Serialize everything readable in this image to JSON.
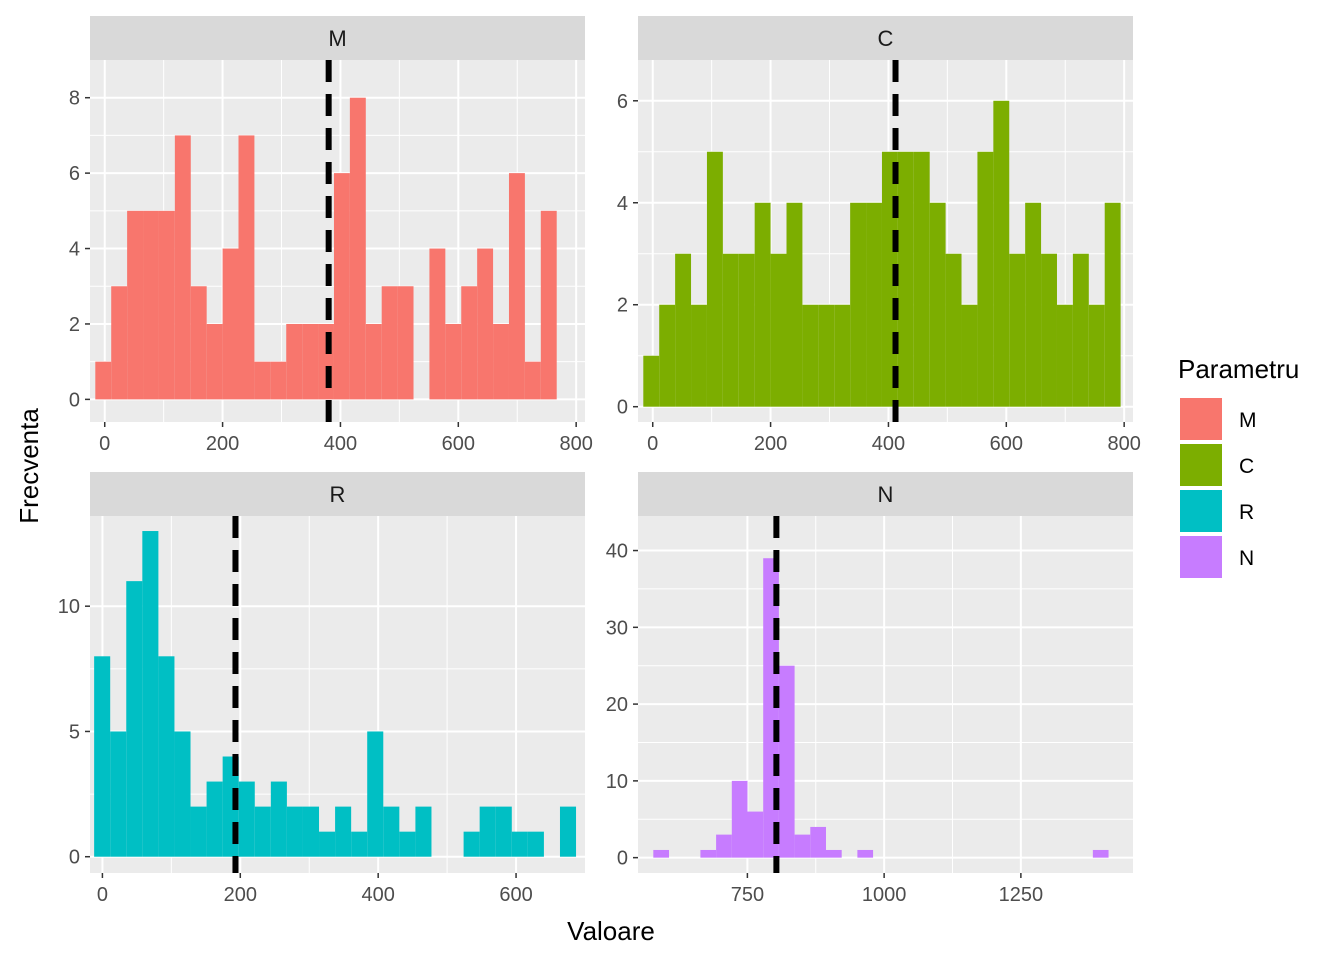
{
  "chart_data": {
    "type": "histogram-facets",
    "xlabel": "Valoare",
    "ylabel": "Frecventa",
    "legend": {
      "title": "Parametru",
      "position": "right",
      "items": [
        {
          "label": "M",
          "color": "#F8766D"
        },
        {
          "label": "C",
          "color": "#7CAE00"
        },
        {
          "label": "R",
          "color": "#00BFC4"
        },
        {
          "label": "N",
          "color": "#C77CFF"
        }
      ]
    },
    "panels": [
      {
        "name": "M",
        "color": "#F8766D",
        "xlim": [
          -25,
          815
        ],
        "ylim": [
          -0.6,
          9.0
        ],
        "xticks": [
          0,
          200,
          400,
          600,
          800
        ],
        "xtick_labels": [
          "0",
          "200",
          "400",
          "600",
          "800"
        ],
        "yticks": [
          0,
          2,
          4,
          6,
          8
        ],
        "ytick_labels": [
          "0",
          "2",
          "4",
          "6",
          "8"
        ],
        "mean": 380,
        "bin_start": -16,
        "bin_width": 27,
        "counts": [
          1,
          3,
          5,
          5,
          5,
          7,
          3,
          2,
          4,
          7,
          1,
          1,
          2,
          2,
          2,
          6,
          8,
          2,
          3,
          3,
          0,
          4,
          2,
          3,
          4,
          2,
          6,
          1,
          5
        ]
      },
      {
        "name": "C",
        "color": "#7CAE00",
        "xlim": [
          -25,
          815
        ],
        "ylim": [
          -0.3,
          6.8
        ],
        "xticks": [
          0,
          200,
          400,
          600,
          800
        ],
        "xtick_labels": [
          "0",
          "200",
          "400",
          "600",
          "800"
        ],
        "yticks": [
          0,
          2,
          4,
          6
        ],
        "ytick_labels": [
          "0",
          "2",
          "4",
          "6"
        ],
        "mean": 412,
        "bin_start": -16,
        "bin_width": 27,
        "counts": [
          1,
          2,
          3,
          2,
          5,
          3,
          3,
          4,
          3,
          4,
          2,
          2,
          2,
          4,
          4,
          5,
          5,
          5,
          4,
          3,
          2,
          5,
          6,
          3,
          4,
          3,
          2,
          3,
          2,
          4
        ]
      },
      {
        "name": "R",
        "color": "#00BFC4",
        "xlim": [
          -18,
          700
        ],
        "ylim": [
          -0.65,
          13.6
        ],
        "xticks": [
          0,
          200,
          400,
          600
        ],
        "xtick_labels": [
          "0",
          "200",
          "400",
          "600"
        ],
        "yticks": [
          0,
          5,
          10
        ],
        "ytick_labels": [
          "0",
          "5",
          "10"
        ],
        "mean": 193,
        "bin_start": -12,
        "bin_width": 23.3,
        "counts": [
          8,
          5,
          11,
          13,
          8,
          5,
          2,
          3,
          4,
          3,
          2,
          3,
          2,
          2,
          1,
          2,
          1,
          5,
          2,
          1,
          2,
          0,
          0,
          1,
          2,
          2,
          1,
          1,
          0,
          2
        ]
      },
      {
        "name": "N",
        "color": "#C77CFF",
        "xlim": [
          550,
          1455
        ],
        "ylim": [
          -2.0,
          44.5
        ],
        "xticks": [
          750,
          1000,
          1250
        ],
        "xtick_labels": [
          "750",
          "1000",
          "1250"
        ],
        "yticks": [
          0,
          10,
          20,
          30,
          40
        ],
        "ytick_labels": [
          "0",
          "10",
          "20",
          "30",
          "40"
        ],
        "mean": 803,
        "bin_start": 578,
        "bin_width": 28.7,
        "counts": [
          1,
          0,
          0,
          1,
          3,
          10,
          6,
          39,
          25,
          3,
          4,
          1,
          0,
          1,
          0,
          0,
          0,
          0,
          0,
          0,
          0,
          0,
          0,
          0,
          0,
          0,
          0,
          0,
          1
        ]
      }
    ]
  }
}
